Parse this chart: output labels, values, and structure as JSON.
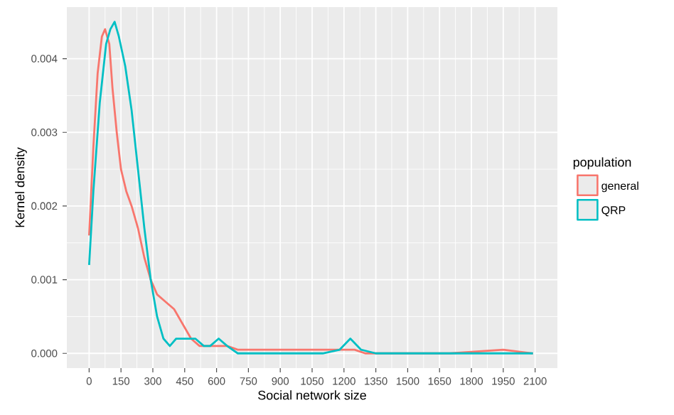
{
  "chart_data": {
    "type": "line",
    "xlabel": "Social network size",
    "ylabel": "Kernel density",
    "legend_title": "population",
    "x": [
      0,
      20,
      40,
      60,
      75,
      95,
      110,
      130,
      150,
      175,
      200,
      230,
      260,
      290,
      320,
      360,
      400,
      440,
      480,
      520,
      560,
      600,
      650,
      700,
      750,
      800,
      850,
      900,
      1000,
      1100,
      1200,
      1250,
      1300,
      1400,
      1500,
      1700,
      1950,
      2090
    ],
    "series": [
      {
        "name": "general",
        "color": "#f8766d",
        "values": [
          0.0016,
          0.0028,
          0.0038,
          0.0043,
          0.0044,
          0.0042,
          0.0036,
          0.003,
          0.0025,
          0.0022,
          0.002,
          0.0017,
          0.0013,
          0.001,
          0.0008,
          0.0007,
          0.0006,
          0.0004,
          0.0002,
          0.0001,
          0.0001,
          0.0001,
          0.0001,
          5e-05,
          5e-05,
          5e-05,
          5e-05,
          5e-05,
          5e-05,
          5e-05,
          5e-05,
          5e-05,
          0,
          0,
          0,
          0,
          5e-05,
          0
        ]
      },
      {
        "name": "QRP",
        "color": "#00bfc4",
        "x": [
          0,
          20,
          50,
          80,
          100,
          120,
          140,
          170,
          200,
          230,
          260,
          290,
          320,
          350,
          380,
          410,
          440,
          470,
          500,
          540,
          570,
          610,
          650,
          700,
          750,
          900,
          1100,
          1180,
          1230,
          1280,
          1350,
          1500,
          1800,
          2090
        ],
        "values": [
          0.0012,
          0.0022,
          0.0034,
          0.0042,
          0.0044,
          0.0045,
          0.0043,
          0.0039,
          0.0033,
          0.0025,
          0.0017,
          0.001,
          0.0005,
          0.0002,
          0.0001,
          0.0002,
          0.0002,
          0.0002,
          0.0002,
          0.0001,
          0.0001,
          0.0002,
          0.0001,
          0,
          0,
          0,
          0,
          5e-05,
          0.0002,
          5e-05,
          0,
          0,
          0,
          0
        ]
      }
    ],
    "xlim": [
      -105,
      2205
    ],
    "ylim": [
      -0.0002,
      0.0047
    ],
    "xticks": [
      0,
      150,
      300,
      450,
      600,
      750,
      900,
      1050,
      1200,
      1350,
      1500,
      1650,
      1800,
      1950,
      2100
    ],
    "yticks": [
      {
        "value": 0,
        "label": "0.000"
      },
      {
        "value": 0.001,
        "label": "0.001"
      },
      {
        "value": 0.002,
        "label": "0.002"
      },
      {
        "value": 0.003,
        "label": "0.003"
      },
      {
        "value": 0.004,
        "label": "0.004"
      }
    ],
    "grid": true,
    "legend": "right",
    "line_style": "solid",
    "marker": "none"
  }
}
